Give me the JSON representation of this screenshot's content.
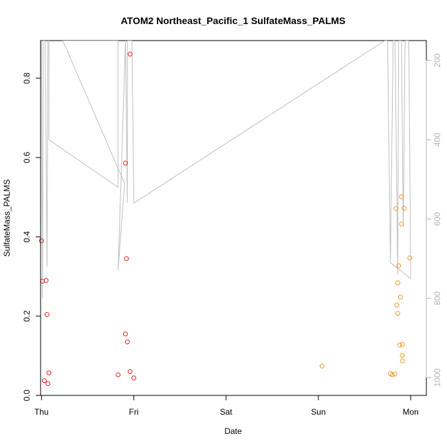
{
  "chart_data": {
    "type": "scatter",
    "title": "ATOM2 Northeast_Pacific_1 SulfateMass_PALMS",
    "xlabel": "Date",
    "ylabel": "SulfateMass_PALMS",
    "xlim": [
      -0.01,
      4.17
    ],
    "ylim": [
      0,
      0.895
    ],
    "x_ticks": [
      0,
      1,
      2,
      3,
      4
    ],
    "x_tick_labels": [
      "Thu",
      "Fri",
      "Sat",
      "Sun",
      "Mon"
    ],
    "y_ticks": [
      0.0,
      0.2,
      0.4,
      0.6,
      0.8
    ],
    "y_tick_labels": [
      "0.0",
      "0.2",
      "0.4",
      "0.6",
      "0.8"
    ],
    "y2_ticks": [
      200,
      400,
      600,
      800,
      1000
    ],
    "y2_tick_labels": [
      "200",
      "400",
      "600",
      "800",
      "1000"
    ],
    "y2lim": [
      150,
      1045
    ],
    "y2_reversed": true,
    "grid": false,
    "colors": {
      "series_red": "#e8261f",
      "series_orange": "#f39a2b",
      "pressure_line": "#bebebe",
      "axis": "#000000",
      "right_axis": "#b4b4b4"
    },
    "series": [
      {
        "color": "#e8261f",
        "points": [
          [
            0.0,
            0.39
          ],
          [
            0.01,
            0.288
          ],
          [
            0.05,
            0.29
          ],
          [
            0.03,
            0.037
          ],
          [
            0.06,
            0.204
          ],
          [
            0.07,
            0.03
          ],
          [
            0.08,
            0.057
          ],
          [
            0.83,
            0.052
          ],
          [
            0.91,
            0.586
          ],
          [
            0.91,
            0.155
          ],
          [
            0.92,
            0.345
          ],
          [
            0.93,
            0.135
          ],
          [
            0.96,
            0.861
          ],
          [
            0.96,
            0.06
          ],
          [
            1.0,
            0.044
          ]
        ]
      },
      {
        "color": "#f39a2b",
        "points": [
          [
            3.04,
            0.074
          ],
          [
            3.78,
            0.055
          ],
          [
            3.8,
            0.052
          ],
          [
            3.83,
            0.054
          ],
          [
            3.84,
            0.471
          ],
          [
            3.85,
            0.228
          ],
          [
            3.86,
            0.207
          ],
          [
            3.86,
            0.284
          ],
          [
            3.87,
            0.327
          ],
          [
            3.88,
            0.127
          ],
          [
            3.89,
            0.248
          ],
          [
            3.9,
            0.432
          ],
          [
            3.9,
            0.501
          ],
          [
            3.91,
            0.101
          ],
          [
            3.91,
            0.087
          ],
          [
            3.91,
            0.129
          ],
          [
            3.93,
            0.472
          ],
          [
            3.99,
            0.347
          ]
        ]
      },
      {
        "color": "#bebebe",
        "kind": "line",
        "points": [
          [
            0.0,
            150
          ],
          [
            0.01,
            800
          ],
          [
            0.02,
            150
          ],
          [
            0.04,
            150
          ],
          [
            0.06,
            720
          ],
          [
            0.07,
            150
          ],
          [
            0.08,
            150
          ],
          [
            0.08,
            400
          ],
          [
            0.83,
            520
          ],
          [
            0.83,
            150
          ],
          [
            0.23,
            150
          ],
          [
            0.9,
            510
          ],
          [
            0.83,
            730
          ],
          [
            0.91,
            150
          ],
          [
            0.93,
            560
          ],
          [
            0.93,
            150
          ],
          [
            0.98,
            150
          ],
          [
            1.0,
            560
          ],
          [
            3.72,
            150
          ],
          [
            3.75,
            150
          ],
          [
            3.78,
            710
          ],
          [
            3.81,
            150
          ],
          [
            3.83,
            150
          ],
          [
            3.86,
            740
          ],
          [
            3.87,
            150
          ],
          [
            3.9,
            150
          ],
          [
            3.92,
            620
          ],
          [
            3.94,
            150
          ],
          [
            3.98,
            150
          ],
          [
            4.0,
            750
          ],
          [
            3.78,
            710
          ],
          [
            3.83,
            720
          ]
        ]
      }
    ]
  }
}
